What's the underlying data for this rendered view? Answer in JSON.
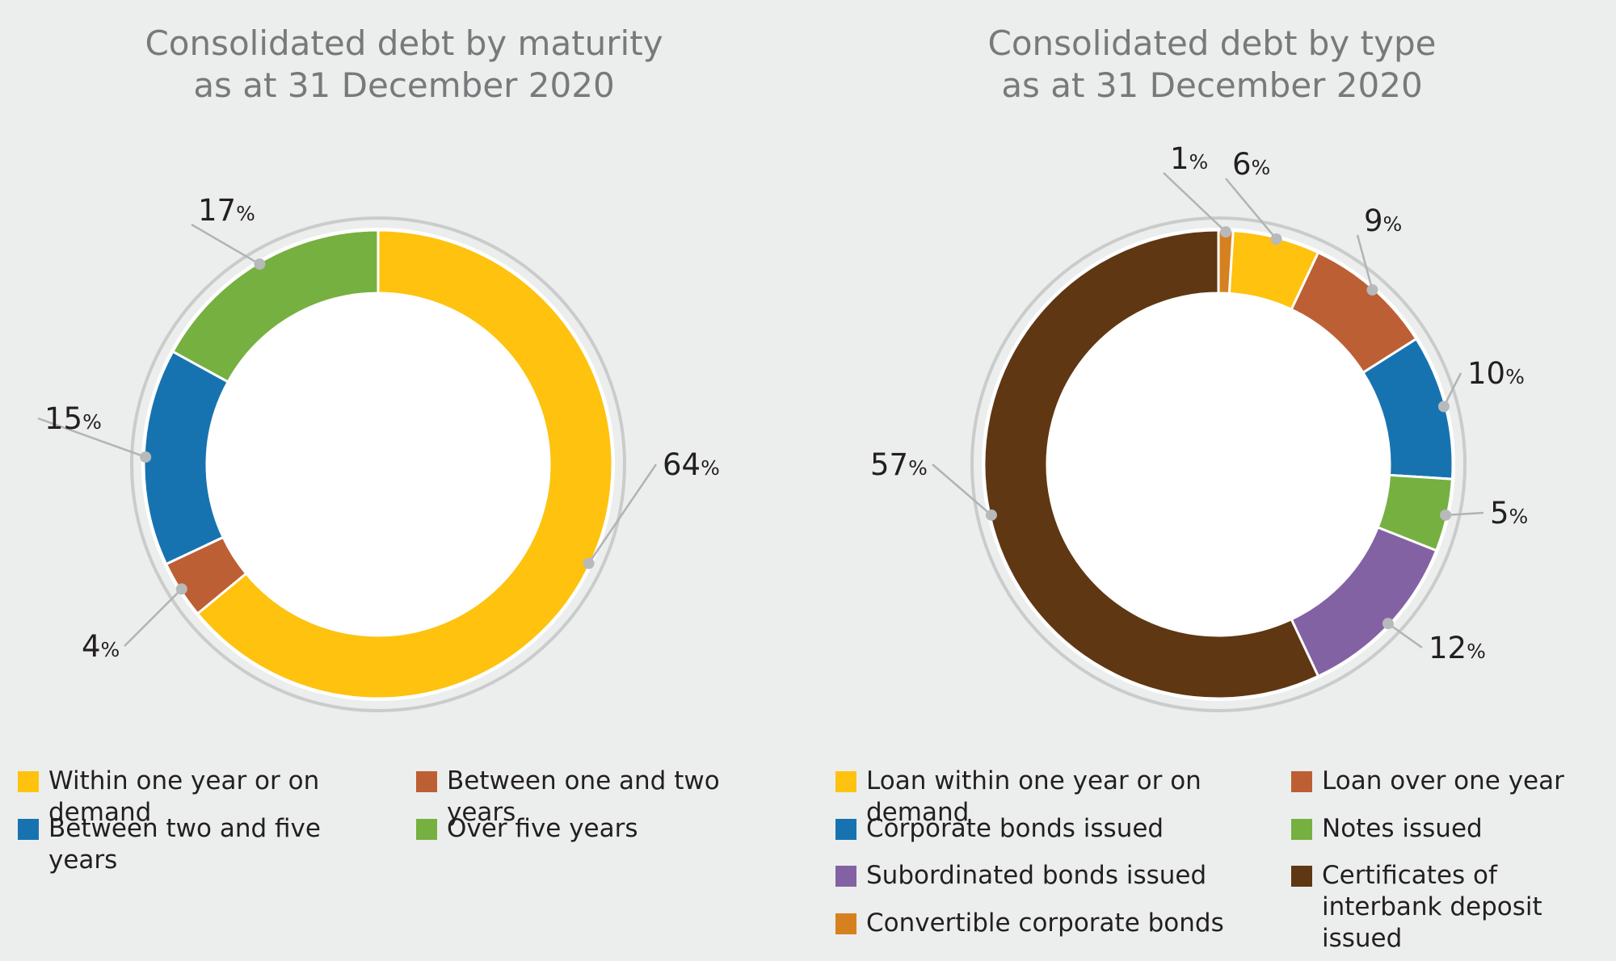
{
  "chart_data": [
    {
      "type": "pie",
      "title_line1": "Consolidated debt by maturity",
      "title_line2": "as at 31 December 2020",
      "categories": [
        "Within one year or on demand",
        "Between one and two years",
        "Between two and five years",
        "Over five years"
      ],
      "values": [
        64,
        4,
        15,
        17
      ],
      "labels": [
        "64",
        "4",
        "15",
        "17"
      ],
      "unit": "%",
      "colors": [
        "#fec20f",
        "#bd5f34",
        "#1773b0",
        "#76b041"
      ],
      "legend_placement": "bottom"
    },
    {
      "type": "pie",
      "title_line1": "Consolidated debt by type",
      "title_line2": "as at 31 December 2020",
      "categories": [
        "Loan within one year or on demand",
        "Loan over one year",
        "Corporate bonds issued",
        "Notes issued",
        "Subordinated bonds issued",
        "Certificates of interbank deposit issued",
        "Convertible corporate bonds"
      ],
      "values": [
        6,
        9,
        10,
        5,
        12,
        57,
        1
      ],
      "labels": [
        "6",
        "9",
        "10",
        "5",
        "12",
        "57",
        "1"
      ],
      "unit": "%",
      "colors": [
        "#fec20f",
        "#bd5f34",
        "#1773b0",
        "#76b041",
        "#8362a3",
        "#5f3713",
        "#d5811f"
      ],
      "legend_placement": "bottom"
    }
  ]
}
